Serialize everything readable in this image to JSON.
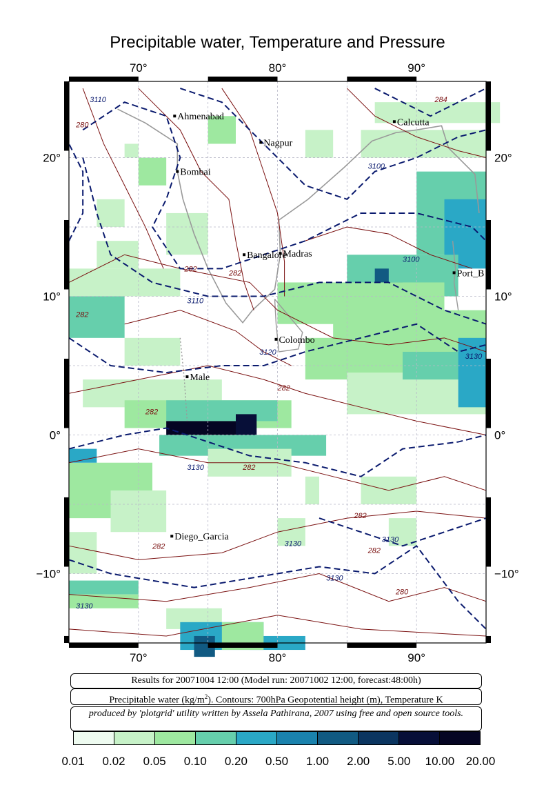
{
  "title": "Precipitable water, Temperature and Pressure",
  "axes": {
    "x_ticks": [
      {
        "label": "70°"
      },
      {
        "label": "80°"
      },
      {
        "label": "90°"
      }
    ],
    "y_ticks": [
      {
        "label": "20°"
      },
      {
        "label": "10°"
      },
      {
        "label": "0°"
      },
      {
        "label": "−10°"
      }
    ]
  },
  "cities": [
    {
      "name": "Ahmenabad"
    },
    {
      "name": "Nagpur"
    },
    {
      "name": "Calcutta"
    },
    {
      "name": "Bombai"
    },
    {
      "name": "Bangalore"
    },
    {
      "name": "Madras"
    },
    {
      "name": "Port_B"
    },
    {
      "name": "Colombo"
    },
    {
      "name": "Male"
    },
    {
      "name": "Diego_Garcia"
    }
  ],
  "contour_labels": {
    "temperature": [
      "284",
      "280",
      "282",
      "282",
      "282",
      "282",
      "282",
      "282",
      "282",
      "282",
      "282",
      "280"
    ],
    "height": [
      "3110",
      "3100",
      "3100",
      "3110",
      "3120",
      "3130",
      "3130",
      "3130",
      "3130",
      "3130",
      "3130"
    ]
  },
  "info": {
    "results": "Results for 20071004 12:00 (Model run: 20071002 12:00, forecast:48:00h)",
    "description_prefix": "Precipitable water (kg/m",
    "description_sup": "2",
    "description_suffix": ").  Contours: 700hPa Geopotential height (m), Temperature K",
    "credit": "produced by 'plotgrid' utility written by Assela Pathirana, 2007 using free and open source tools."
  },
  "colors": {
    "water_scale": [
      "#eefbf0",
      "#c7f2c8",
      "#9ee8a0",
      "#66cfac",
      "#2aa8c6",
      "#1a82ad",
      "#115a82",
      "#0b3560",
      "#070f38",
      "#050523"
    ],
    "temperature_contour": "#7a1010",
    "height_contour": "#0a1a6e",
    "coast": "#999999"
  },
  "scale_labels": [
    "0.01",
    "0.02",
    "0.05",
    "0.10",
    "0.20",
    "0.50",
    "1.00",
    "2.00",
    "5.00",
    "10.00",
    "20.00"
  ]
}
